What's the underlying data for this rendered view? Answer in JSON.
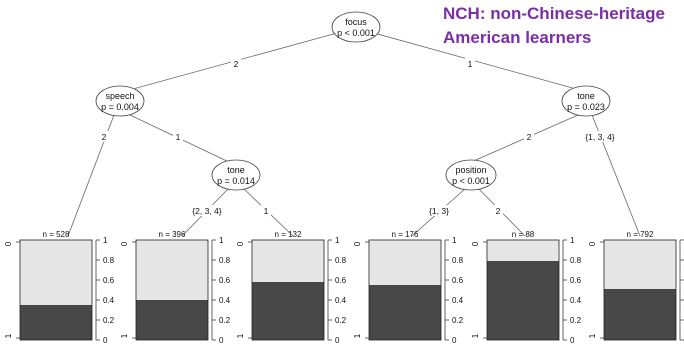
{
  "caption": {
    "line1": "NCH: non-Chinese-heritage",
    "line2": "American learners"
  },
  "nodes": {
    "focus": {
      "name": "focus",
      "p": "p < 0.001"
    },
    "speech": {
      "name": "speech",
      "p": "p = 0.004"
    },
    "tone_a": {
      "name": "tone",
      "p": "p = 0.014"
    },
    "tone_b": {
      "name": "tone",
      "p": "p = 0.023"
    },
    "position": {
      "name": "position",
      "p": "p < 0.001"
    }
  },
  "edges": {
    "focus_speech": "2",
    "focus_tone": "1",
    "speech_leaf1": "2",
    "speech_tone": "1",
    "tone_leaf2": "{2, 3, 4}",
    "tone_leaf3": "1",
    "toneb_position": "2",
    "toneb_leaf6": "{1, 3, 4}",
    "position_leaf4": "{1, 3}",
    "position_leaf5": "2"
  },
  "axis": {
    "ticks": [
      "0",
      "0.2",
      "0.4",
      "0.6",
      "0.8",
      "1"
    ],
    "left_top": "0",
    "left_bottom": "1"
  },
  "colors": {
    "bar_light": "#e6e6e6",
    "bar_dark": "#474747",
    "caption": "#7b2fa6"
  },
  "leaves": [
    {
      "n": "n = 528",
      "dark_fraction": 0.35
    },
    {
      "n": "n = 396",
      "dark_fraction": 0.4
    },
    {
      "n": "n = 132",
      "dark_fraction": 0.58
    },
    {
      "n": "n = 176",
      "dark_fraction": 0.55
    },
    {
      "n": "n = 88",
      "dark_fraction": 0.79
    },
    {
      "n": "n = 792",
      "dark_fraction": 0.51
    }
  ]
}
